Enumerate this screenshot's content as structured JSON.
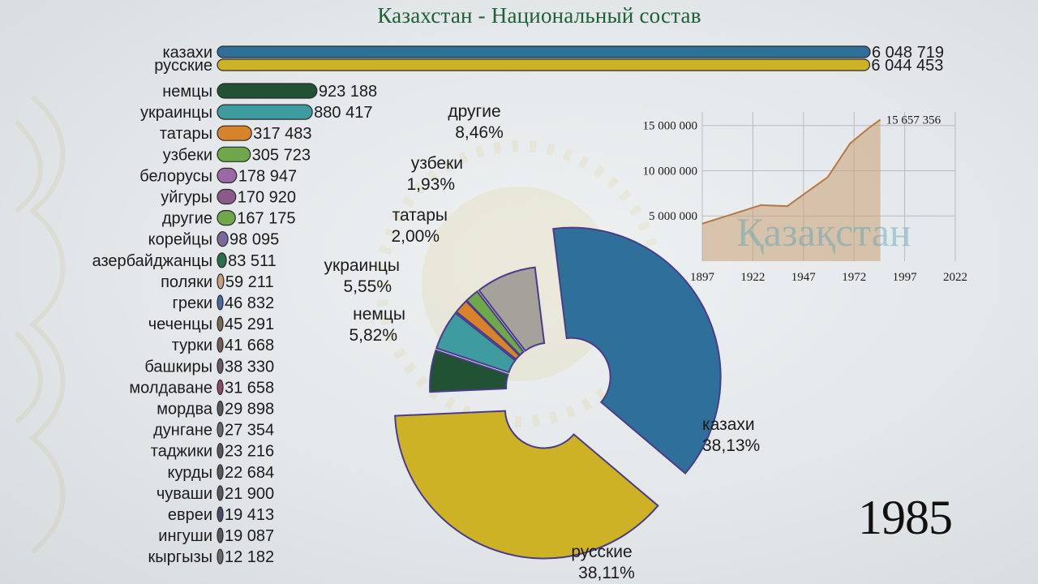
{
  "title": "Казахстан - Национальный состав",
  "year": "1985",
  "colors": {
    "kazakh": "#2e7099",
    "russian": "#cdb226",
    "german": "#215233",
    "ukrainian": "#3e9ba0",
    "tatar": "#d8832a",
    "uzbek": "#6ea84a",
    "other": "#a5a19b",
    "belarus": "#9a6aa8",
    "uyghur": "#8a5a8a"
  },
  "chart_data": [
    {
      "type": "bar",
      "categories": [
        "казахи",
        "русские",
        "немцы",
        "украинцы",
        "татары",
        "узбеки",
        "белорусы",
        "уйгуры",
        "другие",
        "корейцы",
        "азербайджанцы",
        "поляки",
        "греки",
        "чеченцы",
        "турки",
        "башкиры",
        "молдаване",
        "мордва",
        "дунгане",
        "таджики",
        "курды",
        "чуваши",
        "евреи",
        "ингуши",
        "кыргызы"
      ],
      "values": [
        6048719,
        6044453,
        923188,
        880417,
        317483,
        305723,
        178947,
        170920,
        167175,
        98095,
        83511,
        59211,
        46832,
        45291,
        41668,
        38330,
        31658,
        29898,
        27354,
        23216,
        22684,
        21900,
        19413,
        19087,
        12182
      ],
      "value_labels": [
        "6 048 719",
        "6 044 453",
        "923 188",
        "880 417",
        "317 483",
        "305 723",
        "178 947",
        "170 920",
        "167 175",
        "98 095",
        "83 511",
        "59 211",
        "46 832",
        "45 291",
        "41 668",
        "38 330",
        "31 658",
        "29 898",
        "27 354",
        "23 216",
        "22 684",
        "21 900",
        "19 413",
        "19 087",
        "12 182"
      ],
      "bar_colors": [
        "#2e7099",
        "#cdb226",
        "#215233",
        "#3e9ba0",
        "#d8832a",
        "#6ea84a",
        "#9a6aa8",
        "#8a5a8a",
        "#6ea84a",
        "#7a6a9a",
        "#2a6e4a",
        "#c9a47a",
        "#4a6aa8",
        "#7a6a5a",
        "#7a5a5a",
        "#6a5a6a",
        "#8a4a6a",
        "#5a5a5a",
        "#6a6a6a",
        "#5a5a5a",
        "#5a5a5a",
        "#5a5a5a",
        "#4a4a6a",
        "#5a5a5a",
        "#6a6a6a"
      ]
    },
    {
      "type": "pie",
      "style": "donut",
      "labels": [
        "казахи",
        "русские",
        "немцы",
        "украинцы",
        "татары",
        "узбеки",
        "другие"
      ],
      "values": [
        38.13,
        38.11,
        5.82,
        5.55,
        2.0,
        1.93,
        8.46
      ],
      "value_labels": [
        "38,13%",
        "38,11%",
        "5,82%",
        "5,55%",
        "2,00%",
        "1,93%",
        "8,46%"
      ],
      "colors": [
        "#2e7099",
        "#cdb226",
        "#215233",
        "#3e9ba0",
        "#d8832a",
        "#6ea84a",
        "#a5a19b"
      ]
    },
    {
      "type": "area",
      "x": [
        1897,
        1926,
        1939,
        1959,
        1970,
        1979,
        1985
      ],
      "y": [
        4147000,
        6198000,
        6082000,
        9295000,
        13009000,
        14684000,
        15657356
      ],
      "last_value_label": "15 657 356",
      "watermark": "Қазақстан",
      "xticks": [
        "1897",
        "1922",
        "1947",
        "1972",
        "1997",
        "2022"
      ],
      "yticks": [
        "5 000 000",
        "10 000 000",
        "15 000 000"
      ],
      "xlim": [
        1897,
        2022
      ],
      "ylim": [
        0,
        16500000
      ],
      "grid": true
    }
  ]
}
